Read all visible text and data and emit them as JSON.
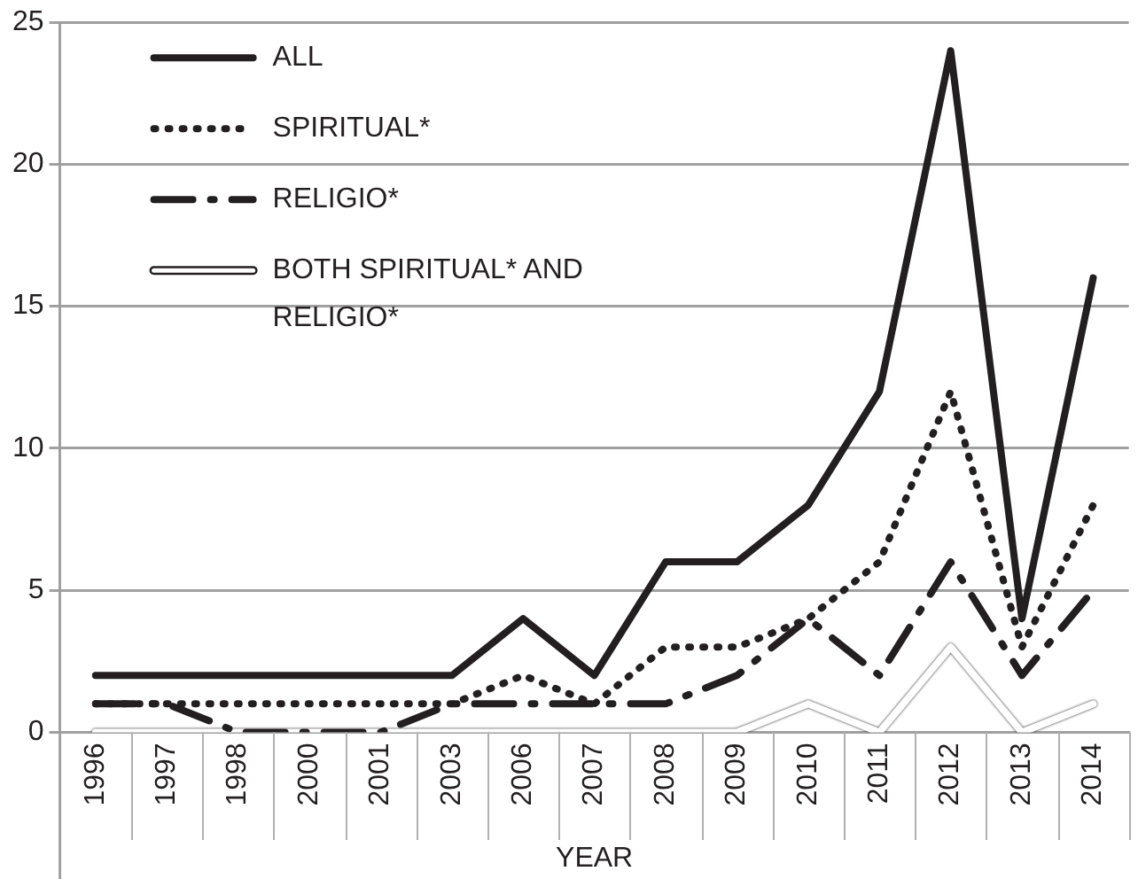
{
  "chart_data": {
    "type": "line",
    "xlabel": "YEAR",
    "categories": [
      "1996",
      "1997",
      "1998",
      "2000",
      "2001",
      "2003",
      "2006",
      "2007",
      "2008",
      "2009",
      "2010",
      "2011",
      "2012",
      "2013",
      "2014"
    ],
    "series": [
      {
        "name": "ALL",
        "color": "#231f20",
        "line_style": "solid",
        "values": [
          2,
          2,
          2,
          2,
          2,
          2,
          4,
          2,
          6,
          6,
          8,
          12,
          24,
          4,
          16
        ]
      },
      {
        "name": "SPIRITUAL*",
        "color": "#231f20",
        "line_style": "dotted",
        "values": [
          1,
          1,
          1,
          1,
          1,
          1,
          2,
          1,
          3,
          3,
          4,
          6,
          12,
          3,
          8
        ]
      },
      {
        "name": "RELIGIO*",
        "color": "#231f20",
        "line_style": "dashed",
        "values": [
          1,
          1,
          0,
          0,
          0,
          1,
          1,
          1,
          1,
          2,
          4,
          2,
          6,
          2,
          5
        ]
      },
      {
        "name": "BOTH SPIRITUAL* AND RELIGIO*",
        "color": "#ffffff",
        "line_style": "solid",
        "values": [
          0,
          0,
          0,
          0,
          0,
          0,
          0,
          0,
          0,
          0,
          1,
          0,
          3,
          0,
          1
        ]
      }
    ],
    "ylim": [
      0,
      25
    ],
    "yticks": [
      0,
      5,
      10,
      15,
      20,
      25
    ],
    "grid": "y",
    "legend": "top left",
    "marker": "none"
  }
}
